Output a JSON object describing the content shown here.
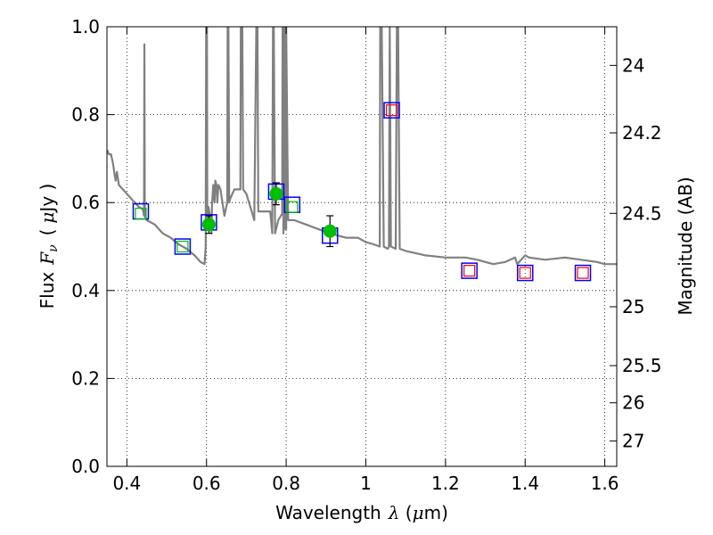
{
  "chart_data": {
    "type": "scatter",
    "xlabel": {
      "prefix": "Wavelength",
      "symbol": "λ",
      "unit_open": " (",
      "unit_mu": "μ",
      "unit_rest": "m)"
    },
    "ylabel": {
      "prefix": "Flux",
      "symbol": "F",
      "subscript": "ν",
      "unit_open": "(",
      "unit_mu": "μ",
      "unit_rest": "Jy )"
    },
    "y2label": "Magnitude (AB)",
    "xlim": [
      0.35,
      1.63
    ],
    "ylim": [
      0.0,
      1.0
    ],
    "grid": true,
    "x_ticks": [
      {
        "value": 0.4,
        "label": "0.4"
      },
      {
        "value": 0.6,
        "label": "0.6"
      },
      {
        "value": 0.8,
        "label": "0.8"
      },
      {
        "value": 1.0,
        "label": "1"
      },
      {
        "value": 1.2,
        "label": "1.2"
      },
      {
        "value": 1.4,
        "label": "1.4"
      },
      {
        "value": 1.6,
        "label": "1.6"
      }
    ],
    "y_ticks": [
      {
        "value": 0.0,
        "label": "0.0"
      },
      {
        "value": 0.2,
        "label": "0.2"
      },
      {
        "value": 0.4,
        "label": "0.4"
      },
      {
        "value": 0.6,
        "label": "0.6"
      },
      {
        "value": 0.8,
        "label": "0.8"
      },
      {
        "value": 1.0,
        "label": "1.0"
      }
    ],
    "y2_ticks": [
      {
        "mag": 24.0,
        "label": "24"
      },
      {
        "mag": 24.2,
        "label": "24.2"
      },
      {
        "mag": 24.5,
        "label": "24.5"
      },
      {
        "mag": 25.0,
        "label": "25"
      },
      {
        "mag": 25.5,
        "label": "25.5"
      },
      {
        "mag": 26.0,
        "label": "26"
      },
      {
        "mag": 27.0,
        "label": "27"
      }
    ],
    "series": [
      {
        "kind": "model-spectrum",
        "color": "#808080",
        "points": [
          [
            0.35,
            0.72
          ],
          [
            0.355,
            0.71
          ],
          [
            0.36,
            0.71
          ],
          [
            0.365,
            0.69
          ],
          [
            0.37,
            0.66
          ],
          [
            0.372,
            0.65
          ],
          [
            0.375,
            0.67
          ],
          [
            0.38,
            0.64
          ],
          [
            0.39,
            0.63
          ],
          [
            0.4,
            0.62
          ],
          [
            0.41,
            0.61
          ],
          [
            0.42,
            0.6
          ],
          [
            0.43,
            0.59
          ],
          [
            0.44,
            0.585
          ],
          [
            0.443,
            0.57
          ],
          [
            0.444,
            0.96
          ],
          [
            0.445,
            0.57
          ],
          [
            0.45,
            0.56
          ],
          [
            0.47,
            0.55
          ],
          [
            0.49,
            0.53
          ],
          [
            0.51,
            0.52
          ],
          [
            0.53,
            0.505
          ],
          [
            0.55,
            0.495
          ],
          [
            0.57,
            0.48
          ],
          [
            0.585,
            0.465
          ],
          [
            0.595,
            0.46
          ],
          [
            0.598,
            0.5
          ],
          [
            0.599,
            1.0
          ],
          [
            0.601,
            1.0
          ],
          [
            0.602,
            0.56
          ],
          [
            0.605,
            0.59
          ],
          [
            0.61,
            0.56
          ],
          [
            0.612,
            0.53
          ],
          [
            0.614,
            0.6
          ],
          [
            0.617,
            0.64
          ],
          [
            0.62,
            0.6
          ],
          [
            0.622,
            0.65
          ],
          [
            0.625,
            0.64
          ],
          [
            0.627,
            0.6
          ],
          [
            0.63,
            0.64
          ],
          [
            0.635,
            0.63
          ],
          [
            0.64,
            0.6
          ],
          [
            0.645,
            0.57
          ],
          [
            0.652,
            0.6
          ],
          [
            0.653,
            1.0
          ],
          [
            0.655,
            1.0
          ],
          [
            0.657,
            0.6
          ],
          [
            0.66,
            0.61
          ],
          [
            0.67,
            0.63
          ],
          [
            0.68,
            0.63
          ],
          [
            0.685,
            0.63
          ],
          [
            0.686,
            1.0
          ],
          [
            0.69,
            1.0
          ],
          [
            0.692,
            0.63
          ],
          [
            0.7,
            0.62
          ],
          [
            0.71,
            0.59
          ],
          [
            0.72,
            0.56
          ],
          [
            0.725,
            1.0
          ],
          [
            0.728,
            1.0
          ],
          [
            0.73,
            0.58
          ],
          [
            0.74,
            0.58
          ],
          [
            0.75,
            0.58
          ],
          [
            0.76,
            0.58
          ],
          [
            0.765,
            0.53
          ],
          [
            0.767,
            1.0
          ],
          [
            0.769,
            1.0
          ],
          [
            0.772,
            0.53
          ],
          [
            0.78,
            0.56
          ],
          [
            0.79,
            0.575
          ],
          [
            0.791,
            1.0
          ],
          [
            0.793,
            0.53
          ],
          [
            0.795,
            1.0
          ],
          [
            0.797,
            0.54
          ],
          [
            0.799,
            1.0
          ],
          [
            0.8,
            0.54
          ],
          [
            0.8,
            1.0
          ],
          [
            0.805,
            0.56
          ],
          [
            0.82,
            0.56
          ],
          [
            0.85,
            0.55
          ],
          [
            0.88,
            0.54
          ],
          [
            0.91,
            0.53
          ],
          [
            0.93,
            0.525
          ],
          [
            0.95,
            0.52
          ],
          [
            0.98,
            0.52
          ],
          [
            1.0,
            0.51
          ],
          [
            1.02,
            0.505
          ],
          [
            1.035,
            0.5
          ],
          [
            1.036,
            1.0
          ],
          [
            1.04,
            1.0
          ],
          [
            1.045,
            0.5
          ],
          [
            1.055,
            0.495
          ],
          [
            1.058,
            0.5
          ],
          [
            1.06,
            1.0
          ],
          [
            1.063,
            0.5
          ],
          [
            1.075,
            0.495
          ],
          [
            1.078,
            1.0
          ],
          [
            1.081,
            1.0
          ],
          [
            1.085,
            0.495
          ],
          [
            1.1,
            0.49
          ],
          [
            1.15,
            0.48
          ],
          [
            1.2,
            0.475
          ],
          [
            1.25,
            0.475
          ],
          [
            1.28,
            0.47
          ],
          [
            1.3,
            0.465
          ],
          [
            1.32,
            0.46
          ],
          [
            1.35,
            0.465
          ],
          [
            1.375,
            0.475
          ],
          [
            1.38,
            0.46
          ],
          [
            1.4,
            0.48
          ],
          [
            1.41,
            0.475
          ],
          [
            1.45,
            0.47
          ],
          [
            1.5,
            0.475
          ],
          [
            1.54,
            0.47
          ],
          [
            1.58,
            0.465
          ],
          [
            1.6,
            0.46
          ],
          [
            1.63,
            0.46
          ]
        ]
      },
      {
        "kind": "model-photometry-blue",
        "color": "#0000ff",
        "points": [
          [
            0.435,
            0.58
          ],
          [
            0.54,
            0.5
          ],
          [
            0.606,
            0.555
          ],
          [
            0.775,
            0.625
          ],
          [
            0.815,
            0.595
          ],
          [
            0.91,
            0.525
          ],
          [
            1.065,
            0.81
          ],
          [
            1.26,
            0.445
          ],
          [
            1.4,
            0.44
          ],
          [
            1.545,
            0.44
          ]
        ]
      },
      {
        "kind": "photometry-green",
        "color": "#00bf00",
        "points": [
          [
            0.435,
            0.575
          ],
          [
            0.54,
            0.5
          ],
          [
            0.815,
            0.59
          ]
        ]
      },
      {
        "kind": "photometry-red",
        "color": "#ff0000",
        "points": [
          [
            1.065,
            0.81
          ],
          [
            1.26,
            0.445
          ],
          [
            1.4,
            0.44
          ],
          [
            1.545,
            0.44
          ]
        ]
      },
      {
        "kind": "detections",
        "color": "#00bf00",
        "points": [
          {
            "x": 0.606,
            "y": 0.55,
            "err": 0.02
          },
          {
            "x": 0.775,
            "y": 0.62,
            "err": 0.025
          },
          {
            "x": 0.91,
            "y": 0.535,
            "err": 0.035
          }
        ]
      }
    ]
  }
}
